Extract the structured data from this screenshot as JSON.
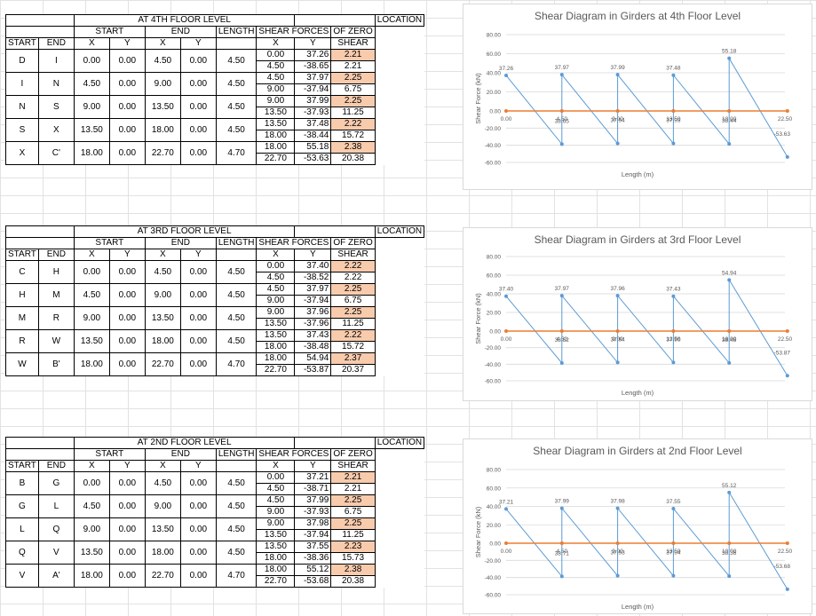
{
  "tables": [
    {
      "title": "AT 4TH FLOOR LEVEL",
      "headers": {
        "start": "START",
        "end": "END",
        "length": "LENGTH",
        "shear_forces": "SHEAR FORCES",
        "location1": "LOCATION",
        "location2": "OF ZERO",
        "location3": "SHEAR",
        "x": "X",
        "y": "Y"
      },
      "rows": [
        {
          "start": "D",
          "end": "I",
          "sx": "0.00",
          "sy": "0.00",
          "ex": "4.50",
          "ey": "0.00",
          "len": "4.50",
          "f1x": "0.00",
          "f1y": "37.26",
          "f2x": "4.50",
          "f2y": "-38.65",
          "loc1": "2.21",
          "loc2": "2.21"
        },
        {
          "start": "I",
          "end": "N",
          "sx": "4.50",
          "sy": "0.00",
          "ex": "9.00",
          "ey": "0.00",
          "len": "4.50",
          "f1x": "4.50",
          "f1y": "37.97",
          "f2x": "9.00",
          "f2y": "-37.94",
          "loc1": "2.25",
          "loc2": "6.75"
        },
        {
          "start": "N",
          "end": "S",
          "sx": "9.00",
          "sy": "0.00",
          "ex": "13.50",
          "ey": "0.00",
          "len": "4.50",
          "f1x": "9.00",
          "f1y": "37.99",
          "f2x": "13.50",
          "f2y": "-37.93",
          "loc1": "2.25",
          "loc2": "11.25"
        },
        {
          "start": "S",
          "end": "X",
          "sx": "13.50",
          "sy": "0.00",
          "ex": "18.00",
          "ey": "0.00",
          "len": "4.50",
          "f1x": "13.50",
          "f1y": "37.48",
          "f2x": "18.00",
          "f2y": "-38.44",
          "loc1": "2.22",
          "loc2": "15.72"
        },
        {
          "start": "X",
          "end": "C'",
          "sx": "18.00",
          "sy": "0.00",
          "ex": "22.70",
          "ey": "0.00",
          "len": "4.70",
          "f1x": "18.00",
          "f1y": "55.18",
          "f2x": "22.70",
          "f2y": "-53.63",
          "loc1": "2.38",
          "loc2": "20.38"
        }
      ]
    },
    {
      "title": "AT 3RD FLOOR LEVEL",
      "headers": {
        "start": "START",
        "end": "END",
        "length": "LENGTH",
        "shear_forces": "SHEAR FORCES",
        "location1": "LOCATION",
        "location2": "OF ZERO",
        "location3": "SHEAR",
        "x": "X",
        "y": "Y"
      },
      "rows": [
        {
          "start": "C",
          "end": "H",
          "sx": "0.00",
          "sy": "0.00",
          "ex": "4.50",
          "ey": "0.00",
          "len": "4.50",
          "f1x": "0.00",
          "f1y": "37.40",
          "f2x": "4.50",
          "f2y": "-38.52",
          "loc1": "2.22",
          "loc2": "2.22"
        },
        {
          "start": "H",
          "end": "M",
          "sx": "4.50",
          "sy": "0.00",
          "ex": "9.00",
          "ey": "0.00",
          "len": "4.50",
          "f1x": "4.50",
          "f1y": "37.97",
          "f2x": "9.00",
          "f2y": "-37.94",
          "loc1": "2.25",
          "loc2": "6.75"
        },
        {
          "start": "M",
          "end": "R",
          "sx": "9.00",
          "sy": "0.00",
          "ex": "13.50",
          "ey": "0.00",
          "len": "4.50",
          "f1x": "9.00",
          "f1y": "37.96",
          "f2x": "13.50",
          "f2y": "-37.96",
          "loc1": "2.25",
          "loc2": "11.25"
        },
        {
          "start": "R",
          "end": "W",
          "sx": "13.50",
          "sy": "0.00",
          "ex": "18.00",
          "ey": "0.00",
          "len": "4.50",
          "f1x": "13.50",
          "f1y": "37.43",
          "f2x": "18.00",
          "f2y": "-38.48",
          "loc1": "2.22",
          "loc2": "15.72"
        },
        {
          "start": "W",
          "end": "B'",
          "sx": "18.00",
          "sy": "0.00",
          "ex": "22.70",
          "ey": "0.00",
          "len": "4.70",
          "f1x": "18.00",
          "f1y": "54.94",
          "f2x": "22.70",
          "f2y": "-53.87",
          "loc1": "2.37",
          "loc2": "20.37"
        }
      ]
    },
    {
      "title": "AT 2ND FLOOR LEVEL",
      "headers": {
        "start": "START",
        "end": "END",
        "length": "LENGTH",
        "shear_forces": "SHEAR FORCES",
        "location1": "LOCATION",
        "location2": "OF ZERO",
        "location3": "SHEAR",
        "x": "X",
        "y": "Y"
      },
      "rows": [
        {
          "start": "B",
          "end": "G",
          "sx": "0.00",
          "sy": "0.00",
          "ex": "4.50",
          "ey": "0.00",
          "len": "4.50",
          "f1x": "0.00",
          "f1y": "37.21",
          "f2x": "4.50",
          "f2y": "-38.71",
          "loc1": "2.21",
          "loc2": "2.21"
        },
        {
          "start": "G",
          "end": "L",
          "sx": "4.50",
          "sy": "0.00",
          "ex": "9.00",
          "ey": "0.00",
          "len": "4.50",
          "f1x": "4.50",
          "f1y": "37.99",
          "f2x": "9.00",
          "f2y": "-37.93",
          "loc1": "2.25",
          "loc2": "6.75"
        },
        {
          "start": "L",
          "end": "Q",
          "sx": "9.00",
          "sy": "0.00",
          "ex": "13.50",
          "ey": "0.00",
          "len": "4.50",
          "f1x": "9.00",
          "f1y": "37.98",
          "f2x": "13.50",
          "f2y": "-37.94",
          "loc1": "2.25",
          "loc2": "11.25"
        },
        {
          "start": "Q",
          "end": "V",
          "sx": "13.50",
          "sy": "0.00",
          "ex": "18.00",
          "ey": "0.00",
          "len": "4.50",
          "f1x": "13.50",
          "f1y": "37.55",
          "f2x": "18.00",
          "f2y": "-38.36",
          "loc1": "2.23",
          "loc2": "15.73"
        },
        {
          "start": "V",
          "end": "A'",
          "sx": "18.00",
          "sy": "0.00",
          "ex": "22.70",
          "ey": "0.00",
          "len": "4.70",
          "f1x": "18.00",
          "f1y": "55.12",
          "f2x": "22.70",
          "f2y": "-53.68",
          "loc1": "2.38",
          "loc2": "20.38"
        }
      ]
    }
  ],
  "colors": {
    "shear_line": "#5b9bd5",
    "zero_line": "#ed7d31",
    "highlight_cell": "#f8cbad",
    "grid": "#d9d9d9",
    "axis_text": "#595959"
  },
  "chart_data": [
    {
      "type": "line",
      "title": "Shear Diagram in Girders at 4th Floor Level",
      "xlabel": "Length (m)",
      "ylabel": "Shear Force (kN)",
      "xlim": [
        0,
        22.5
      ],
      "ylim": [
        -60,
        80
      ],
      "xticks": [
        "0.00",
        "4.50",
        "9.00",
        "13.50",
        "18.00",
        "22.50"
      ],
      "yticks": [
        "80.00",
        "60.00",
        "40.00",
        "20.00",
        "0.00",
        "-20.00",
        "-40.00",
        "-60.00"
      ],
      "grid": true,
      "series": [
        {
          "points": [
            [
              0,
              37.26
            ],
            [
              4.5,
              -38.65
            ],
            [
              4.5,
              37.97
            ],
            [
              9,
              -37.94
            ],
            [
              9,
              37.99
            ],
            [
              13.5,
              -37.93
            ],
            [
              13.5,
              37.48
            ],
            [
              18,
              -38.44
            ],
            [
              18,
              55.18
            ],
            [
              22.7,
              -53.63
            ]
          ],
          "labels": [
            "37.26",
            "38.65",
            "37.97",
            "37.94",
            "37.99",
            "37.93",
            "37.48",
            "38.44",
            "55.18",
            "-53.63"
          ]
        },
        {
          "points": [
            [
              0,
              0
            ],
            [
              4.5,
              0
            ],
            [
              9,
              0
            ],
            [
              13.5,
              0
            ],
            [
              18,
              0
            ],
            [
              22.7,
              0
            ]
          ]
        }
      ]
    },
    {
      "type": "line",
      "title": "Shear Diagram in Girders at 3rd Floor Level",
      "xlabel": "Length (m)",
      "ylabel": "Shear Force (kN)",
      "xlim": [
        0,
        22.5
      ],
      "ylim": [
        -60,
        80
      ],
      "xticks": [
        "0.00",
        "4.50",
        "9.00",
        "13.50",
        "18.00",
        "22.50"
      ],
      "yticks": [
        "80.00",
        "60.00",
        "40.00",
        "20.00",
        "0.00",
        "-20.00",
        "-40.00",
        "-60.00"
      ],
      "grid": true,
      "series": [
        {
          "points": [
            [
              0,
              37.4
            ],
            [
              4.5,
              -38.52
            ],
            [
              4.5,
              37.97
            ],
            [
              9,
              -37.94
            ],
            [
              9,
              37.96
            ],
            [
              13.5,
              -37.96
            ],
            [
              13.5,
              37.43
            ],
            [
              18,
              -38.48
            ],
            [
              18,
              54.94
            ],
            [
              22.7,
              -53.87
            ]
          ],
          "labels": [
            "37.40",
            "38.52",
            "37.97",
            "37.94",
            "37.96",
            "37.96",
            "37.43",
            "38.48",
            "54.94",
            "-53.87"
          ]
        },
        {
          "points": [
            [
              0,
              0
            ],
            [
              4.5,
              0
            ],
            [
              9,
              0
            ],
            [
              13.5,
              0
            ],
            [
              18,
              0
            ],
            [
              22.7,
              0
            ]
          ]
        }
      ]
    },
    {
      "type": "line",
      "title": "Shear Diagram in Girders at 2nd Floor Level",
      "xlabel": "Length (m)",
      "ylabel": "Shear Force (kN)",
      "xlim": [
        0,
        22.5
      ],
      "ylim": [
        -60,
        80
      ],
      "xticks": [
        "0.00",
        "4.50",
        "9.00",
        "13.50",
        "18.00",
        "22.50"
      ],
      "yticks": [
        "80.00",
        "60.00",
        "40.00",
        "20.00",
        "0.00",
        "-20.00",
        "-40.00",
        "-60.00"
      ],
      "grid": true,
      "series": [
        {
          "points": [
            [
              0,
              37.21
            ],
            [
              4.5,
              -38.71
            ],
            [
              4.5,
              37.99
            ],
            [
              9,
              -37.93
            ],
            [
              9,
              37.98
            ],
            [
              13.5,
              -37.94
            ],
            [
              13.5,
              37.55
            ],
            [
              18,
              -38.36
            ],
            [
              18,
              55.12
            ],
            [
              22.7,
              -53.68
            ]
          ],
          "labels": [
            "37.21",
            "38.71",
            "37.99",
            "37.93",
            "37.98",
            "37.94",
            "37.55",
            "38.36",
            "55.12",
            "-53.68"
          ]
        },
        {
          "points": [
            [
              0,
              0
            ],
            [
              4.5,
              0
            ],
            [
              9,
              0
            ],
            [
              13.5,
              0
            ],
            [
              18,
              0
            ],
            [
              22.7,
              0
            ]
          ]
        }
      ]
    }
  ]
}
